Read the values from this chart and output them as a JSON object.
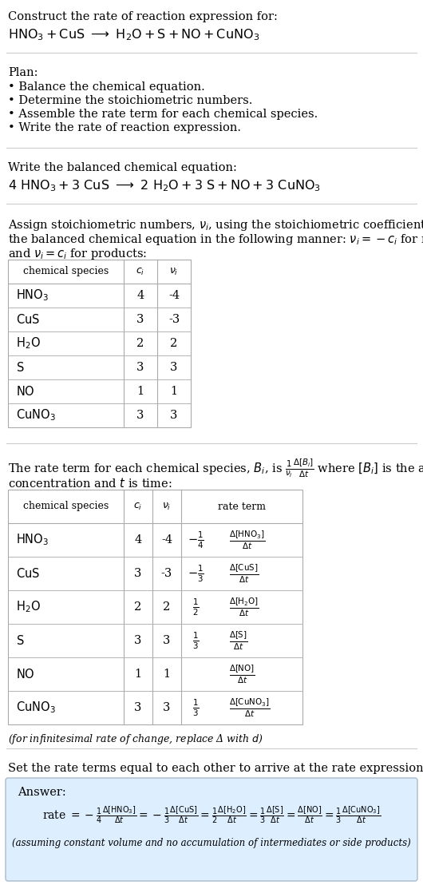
{
  "title_line1": "Construct the rate of reaction expression for:",
  "plan_header": "Plan:",
  "plan_items": [
    "• Balance the chemical equation.",
    "• Determine the stoichiometric numbers.",
    "• Assemble the rate term for each chemical species.",
    "• Write the rate of reaction expression."
  ],
  "balanced_header": "Write the balanced chemical equation:",
  "stoich_intro_line1": "Assign stoichiometric numbers, $\\nu_i$, using the stoichiometric coefficients, $c_i$, from",
  "stoich_intro_line2": "the balanced chemical equation in the following manner: $\\nu_i = -c_i$ for reactants",
  "stoich_intro_line3": "and $\\nu_i = c_i$ for products:",
  "table1_rows": [
    [
      "HNO_3",
      "4",
      "-4"
    ],
    [
      "CuS",
      "3",
      "-3"
    ],
    [
      "H_2O",
      "2",
      "2"
    ],
    [
      "S",
      "3",
      "3"
    ],
    [
      "NO",
      "1",
      "1"
    ],
    [
      "CuNO_3",
      "3",
      "3"
    ]
  ],
  "rate_intro_line1": "The rate term for each chemical species, $B_i$, is $\\frac{1}{\\nu_i}\\frac{\\Delta[B_i]}{\\Delta t}$ where $[B_i]$ is the amount",
  "rate_intro_line2": "concentration and $t$ is time:",
  "infinitesimal_note": "(for infinitesimal rate of change, replace Δ with $d$)",
  "set_equal_text": "Set the rate terms equal to each other to arrive at the rate expression:",
  "answer_label": "Answer:",
  "answer_note": "(assuming constant volume and no accumulation of intermediates or side products)",
  "bg_color": "#ffffff",
  "answer_box_color": "#ddeeff",
  "answer_border_color": "#aabbcc",
  "table_border_color": "#aaaaaa",
  "separator_color": "#cccccc",
  "font_size": 10.5,
  "font_size_small": 9.0
}
